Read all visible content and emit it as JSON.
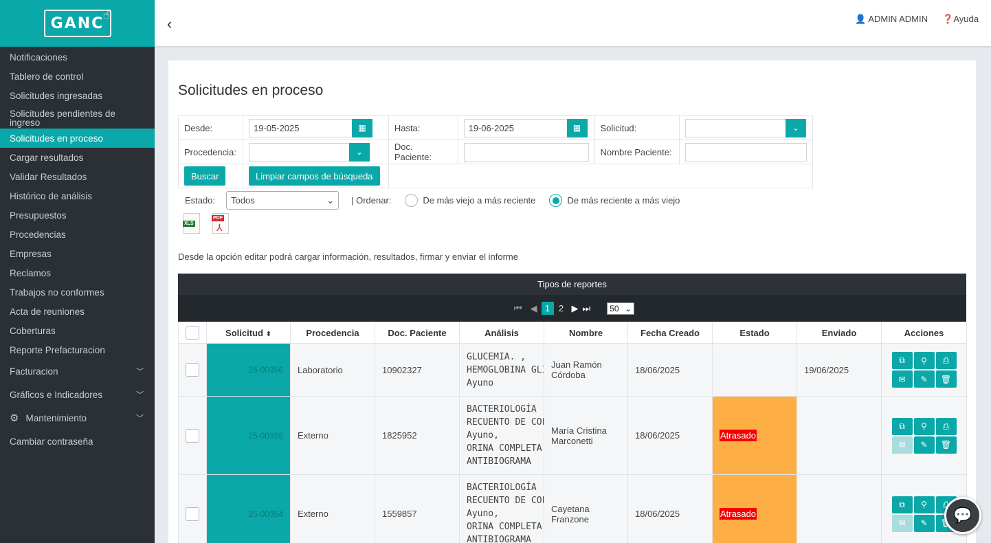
{
  "brand": {
    "logo_text": "GANC"
  },
  "sidebar": {
    "items": [
      {
        "label": "Notificaciones"
      },
      {
        "label": "Tablero de control"
      },
      {
        "label": "Solicitudes ingresadas"
      },
      {
        "label": "Solicitudes pendientes de ingreso"
      },
      {
        "label": "Solicitudes en proceso"
      },
      {
        "label": "Cargar resultados"
      },
      {
        "label": "Validar Resultados"
      },
      {
        "label": "Histórico de análisis"
      },
      {
        "label": "Presupuestos"
      },
      {
        "label": "Procedencias"
      },
      {
        "label": "Empresas"
      },
      {
        "label": "Reclamos"
      },
      {
        "label": "Trabajos no conformes"
      },
      {
        "label": "Acta de reuniones"
      },
      {
        "label": "Coberturas"
      },
      {
        "label": "Reporte Prefacturacion"
      },
      {
        "label": "Facturacion"
      },
      {
        "label": "Gráficos e Indicadores"
      },
      {
        "label": "Mantenimiento"
      },
      {
        "label": "Cambiar contraseña"
      }
    ]
  },
  "topbar": {
    "user": "ADMIN ADMIN",
    "help": "Ayuda"
  },
  "page": {
    "title": "Solicitudes en proceso",
    "filters": {
      "desde_label": "Desde:",
      "desde_value": "19-05-2025",
      "hasta_label": "Hasta:",
      "hasta_value": "19-06-2025",
      "solicitud_label": "Solicitud:",
      "procedencia_label": "Procedencia:",
      "doc_label": "Doc. Paciente:",
      "nombre_label": "Nombre Paciente:",
      "buscar": "Buscar",
      "limpiar": "Limpiar campos de búsqueda"
    },
    "estado_label": "Estado:",
    "estado_value": "Todos",
    "ordenar_label": "| Ordenar:",
    "orden_option1": "De más viejo a más reciente",
    "orden_option2": "De más reciente a más viejo",
    "info": "Desde la opción editar podrá cargar información, resultados, firmar y enviar el informe"
  },
  "grid": {
    "title": "Tipos de reportes",
    "pages": [
      "1",
      "2"
    ],
    "page_size": "50",
    "headers": [
      "Solicitud",
      "Procedencia",
      "Doc. Paciente",
      "Análisis",
      "Nombre",
      "Fecha Creado",
      "Estado",
      "Enviado",
      "Acciones"
    ],
    "rows": [
      {
        "solicitud": "25-00356",
        "procedencia": "Laboratorio",
        "doc": "10902327",
        "analisis": [
          "GLUCEMIA. ,",
          "HEMOGLOBINA GLICOSILA",
          "Ayuno"
        ],
        "nombre": "Juan Ramón Córdoba",
        "fecha": "18/06/2025",
        "estado": "",
        "enviado": "19/06/2025"
      },
      {
        "solicitud": "25-00355",
        "procedencia": "Externo",
        "doc": "1825952",
        "analisis": [
          "BACTERIOLOGÍA - COLOR",
          "RECUENTO DE COLONIAS,",
          "Ayuno,",
          "ORINA COMPLETA,",
          "ANTIBIOGRAMA"
        ],
        "nombre": "María Cristina Marconetti",
        "fecha": "18/06/2025",
        "estado": "Atrasado",
        "enviado": ""
      },
      {
        "solicitud": "25-00354",
        "procedencia": "Externo",
        "doc": "1559857",
        "analisis": [
          "BACTERIOLOGÍA - COLOR",
          "RECUENTO DE COLONIAS,",
          "Ayuno,",
          "ORINA COMPLETA,",
          "ANTIBIOGRAMA"
        ],
        "nombre": "Cayetana Franzone",
        "fecha": "18/06/2025",
        "estado": "Atrasado",
        "enviado": ""
      }
    ]
  },
  "colors": {
    "accent": "#0aa8a8",
    "sidebar": "#2a3036",
    "late": "#fdae45",
    "late_label": "#f50000"
  }
}
